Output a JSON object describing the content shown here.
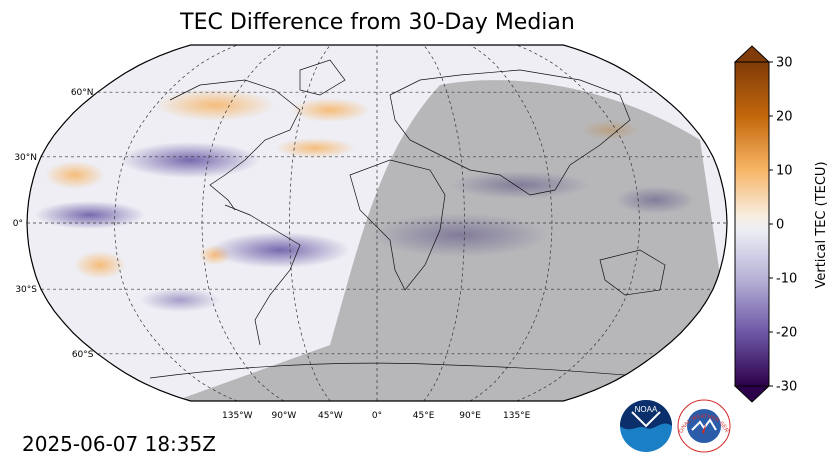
{
  "title": "TEC Difference from 30-Day Median",
  "timestamp": "2025-06-07 18:35Z",
  "map": {
    "projection": "robinson",
    "lat_labels": [
      {
        "lat": 60,
        "text": "60°N"
      },
      {
        "lat": 30,
        "text": "30°N"
      },
      {
        "lat": 0,
        "text": "0°"
      },
      {
        "lat": -30,
        "text": "30°S"
      },
      {
        "lat": -60,
        "text": "60°S"
      }
    ],
    "lon_labels": [
      {
        "lon": -135,
        "text": "135°W"
      },
      {
        "lon": -90,
        "text": "90°W"
      },
      {
        "lon": -45,
        "text": "45°W"
      },
      {
        "lon": 0,
        "text": "0°"
      },
      {
        "lon": 45,
        "text": "45°E"
      },
      {
        "lon": 90,
        "text": "90°E"
      },
      {
        "lon": 135,
        "text": "135°E"
      }
    ],
    "night_shading": "gray overlay over eastern hemisphere"
  },
  "colorbar": {
    "label": "Vertical TEC (TECU)",
    "min": -30,
    "max": 30,
    "ticks": [
      {
        "value": 30,
        "text": "30"
      },
      {
        "value": 20,
        "text": "20"
      },
      {
        "value": 10,
        "text": "10"
      },
      {
        "value": 0,
        "text": "0"
      },
      {
        "value": -10,
        "text": "-10"
      },
      {
        "value": -20,
        "text": "-20"
      },
      {
        "value": -30,
        "text": "-30"
      }
    ],
    "colors": {
      "positive": "#7f3b08",
      "neutral": "#f7f7f7",
      "negative": "#2d004b"
    }
  },
  "logos": {
    "noaa": "NOAA",
    "nws": "NATIONAL WEATHER SERVICE"
  }
}
